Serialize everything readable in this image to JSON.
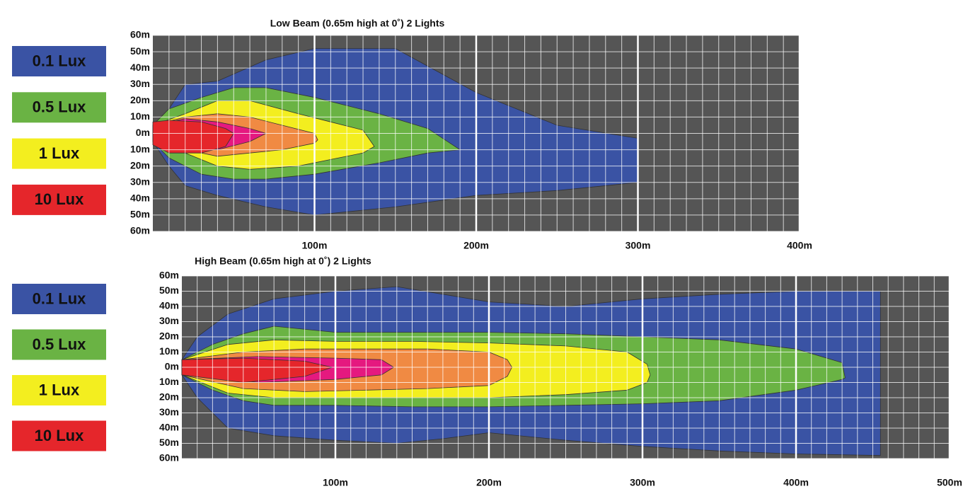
{
  "chart_data": [
    {
      "type": "contour",
      "title": "Low Beam (0.65m high at 0˚) 2 Lights",
      "xlim": [
        0,
        400
      ],
      "xticks": [
        {
          "value": 100,
          "label": "100m"
        },
        {
          "value": 200,
          "label": "200m"
        },
        {
          "value": 300,
          "label": "300m"
        },
        {
          "value": 400,
          "label": "400m"
        }
      ],
      "ylim": [
        -60,
        60
      ],
      "yticks": [
        {
          "value": 60,
          "label": "60m"
        },
        {
          "value": 50,
          "label": "50m"
        },
        {
          "value": 40,
          "label": "40m"
        },
        {
          "value": 30,
          "label": "30m"
        },
        {
          "value": 20,
          "label": "20m"
        },
        {
          "value": 10,
          "label": "10m"
        },
        {
          "value": 0,
          "label": "0m"
        },
        {
          "value": -10,
          "label": "10m"
        },
        {
          "value": -20,
          "label": "20m"
        },
        {
          "value": -30,
          "label": "30m"
        },
        {
          "value": -40,
          "label": "40m"
        },
        {
          "value": -50,
          "label": "50m"
        },
        {
          "value": -60,
          "label": "60m"
        }
      ],
      "grid": true,
      "series": [
        {
          "name": "0.1 Lux",
          "color": "#3a53a4",
          "x": [
            0,
            10,
            20,
            40,
            70,
            100,
            150,
            200,
            250,
            300
          ],
          "upper": [
            5,
            15,
            30,
            32,
            45,
            52,
            52,
            25,
            5,
            -3
          ],
          "lower": [
            -5,
            -20,
            -32,
            -38,
            -45,
            -50,
            -45,
            -38,
            -35,
            -30
          ]
        },
        {
          "name": "0.5 Lux",
          "color": "#6ab344",
          "x": [
            0,
            10,
            30,
            50,
            70,
            100,
            140,
            170,
            190
          ],
          "upper": [
            5,
            15,
            22,
            28,
            28,
            22,
            12,
            3,
            -10
          ],
          "lower": [
            -5,
            -15,
            -25,
            -28,
            -28,
            -25,
            -18,
            -12,
            -10
          ]
        },
        {
          "name": "1 Lux",
          "color": "#f3ee1f",
          "x": [
            0,
            20,
            40,
            60,
            90,
            110,
            130,
            137
          ],
          "upper": [
            5,
            12,
            20,
            20,
            12,
            7,
            2,
            -8
          ],
          "lower": [
            -5,
            -12,
            -20,
            -22,
            -20,
            -16,
            -12,
            -8
          ]
        },
        {
          "color": "#f08a43",
          "x": [
            0,
            20,
            40,
            60,
            80,
            100,
            102
          ],
          "upper": [
            5,
            10,
            12,
            10,
            5,
            0,
            -4
          ],
          "lower": [
            -5,
            -10,
            -14,
            -12,
            -10,
            -6,
            -4
          ]
        },
        {
          "color": "#e5197f",
          "x": [
            0,
            20,
            40,
            60,
            70
          ],
          "upper": [
            5,
            9,
            7,
            3,
            0
          ],
          "lower": [
            -5,
            -10,
            -10,
            -5,
            0
          ]
        },
        {
          "name": "10 Lux",
          "color": "#e5262b",
          "x": [
            0,
            10,
            30,
            45,
            50
          ],
          "upper": [
            7,
            8,
            7,
            3,
            0
          ],
          "lower": [
            -7,
            -12,
            -12,
            -8,
            0
          ]
        }
      ]
    },
    {
      "type": "contour",
      "title": "High Beam (0.65m high at 0˚) 2 Lights",
      "xlim": [
        0,
        500
      ],
      "xticks": [
        {
          "value": 100,
          "label": "100m"
        },
        {
          "value": 200,
          "label": "200m"
        },
        {
          "value": 300,
          "label": "300m"
        },
        {
          "value": 400,
          "label": "400m"
        },
        {
          "value": 500,
          "label": "500m"
        }
      ],
      "ylim": [
        -60,
        60
      ],
      "yticks": [
        {
          "value": 60,
          "label": "60m"
        },
        {
          "value": 50,
          "label": "50m"
        },
        {
          "value": 40,
          "label": "40m"
        },
        {
          "value": 30,
          "label": "30m"
        },
        {
          "value": 20,
          "label": "20m"
        },
        {
          "value": 10,
          "label": "10m"
        },
        {
          "value": 0,
          "label": "0m"
        },
        {
          "value": -10,
          "label": "10m"
        },
        {
          "value": -20,
          "label": "20m"
        },
        {
          "value": -30,
          "label": "30m"
        },
        {
          "value": -40,
          "label": "40m"
        },
        {
          "value": -50,
          "label": "50m"
        },
        {
          "value": -60,
          "label": "60m"
        }
      ],
      "grid": true,
      "series": [
        {
          "name": "0.1 Lux",
          "color": "#3a53a4",
          "x": [
            0,
            10,
            30,
            60,
            100,
            140,
            170,
            200,
            250,
            300,
            350,
            400,
            455
          ],
          "upper": [
            5,
            20,
            35,
            45,
            50,
            53,
            48,
            43,
            40,
            45,
            48,
            50,
            50
          ],
          "lower": [
            -5,
            -20,
            -40,
            -45,
            -48,
            -50,
            -47,
            -43,
            -48,
            -52,
            -55,
            -57,
            -58
          ]
        },
        {
          "name": "0.5 Lux",
          "color": "#6ab344",
          "x": [
            0,
            20,
            40,
            60,
            100,
            150,
            200,
            250,
            300,
            350,
            400,
            430,
            432
          ],
          "upper": [
            5,
            15,
            22,
            27,
            23,
            23,
            23,
            22,
            20,
            18,
            12,
            3,
            -7
          ],
          "lower": [
            -5,
            -15,
            -22,
            -25,
            -25,
            -26,
            -26,
            -25,
            -24,
            -22,
            -15,
            -8,
            -7
          ]
        },
        {
          "name": "1 Lux",
          "color": "#f3ee1f",
          "x": [
            0,
            30,
            60,
            100,
            150,
            200,
            250,
            290,
            303,
            305
          ],
          "upper": [
            5,
            15,
            18,
            17,
            17,
            16,
            14,
            10,
            2,
            -5
          ],
          "lower": [
            -5,
            -17,
            -20,
            -20,
            -20,
            -20,
            -18,
            -15,
            -10,
            -5
          ]
        },
        {
          "color": "#f08a43",
          "x": [
            0,
            40,
            80,
            120,
            160,
            200,
            212,
            215
          ],
          "upper": [
            5,
            10,
            12,
            12,
            12,
            10,
            5,
            0
          ],
          "lower": [
            -5,
            -14,
            -16,
            -15,
            -14,
            -12,
            -6,
            0
          ]
        },
        {
          "color": "#e5197f",
          "x": [
            0,
            50,
            100,
            130,
            138
          ],
          "upper": [
            5,
            7,
            6,
            5,
            0
          ],
          "lower": [
            -5,
            -10,
            -8,
            -5,
            0
          ]
        },
        {
          "name": "10 Lux",
          "color": "#e5262b",
          "x": [
            0,
            40,
            80,
            98
          ],
          "upper": [
            5,
            6,
            4,
            0
          ],
          "lower": [
            -5,
            -10,
            -6,
            0
          ]
        }
      ]
    }
  ]
}
